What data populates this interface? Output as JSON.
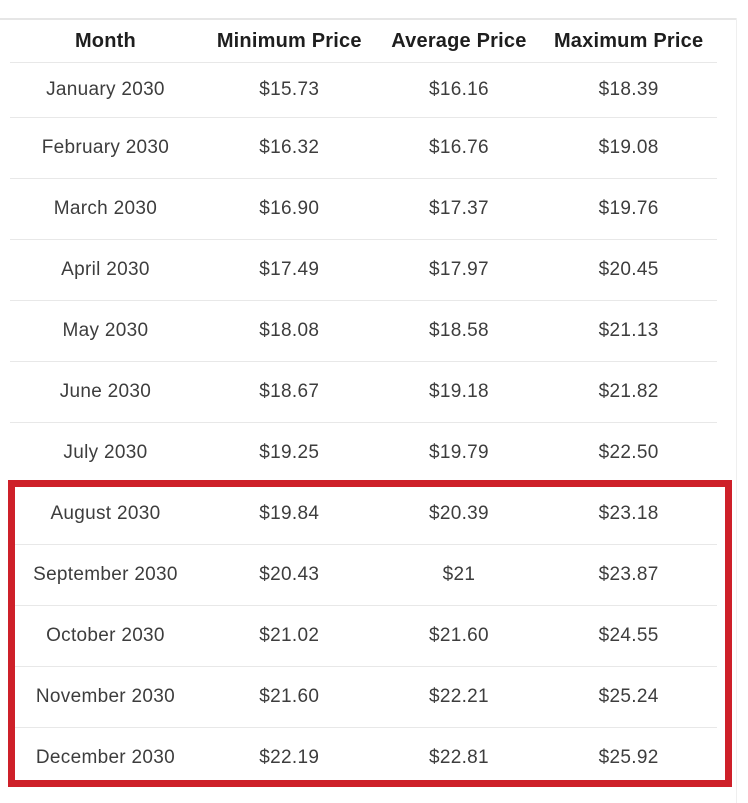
{
  "chart_data": {
    "type": "table",
    "columns": [
      "Month",
      "Minimum Price",
      "Average Price",
      "Maximum Price"
    ],
    "rows": [
      [
        "January 2030",
        "$15.73",
        "$16.16",
        "$18.39"
      ],
      [
        "February 2030",
        "$16.32",
        "$16.76",
        "$19.08"
      ],
      [
        "March 2030",
        "$16.90",
        "$17.37",
        "$19.76"
      ],
      [
        "April 2030",
        "$17.49",
        "$17.97",
        "$20.45"
      ],
      [
        "May 2030",
        "$18.08",
        "$18.58",
        "$21.13"
      ],
      [
        "June 2030",
        "$18.67",
        "$19.18",
        "$21.82"
      ],
      [
        "July 2030",
        "$19.25",
        "$19.79",
        "$22.50"
      ],
      [
        "August 2030",
        "$19.84",
        "$20.39",
        "$23.18"
      ],
      [
        "September 2030",
        "$20.43",
        "$21",
        "$23.87"
      ],
      [
        "October 2030",
        "$21.02",
        "$21.60",
        "$24.55"
      ],
      [
        "November 2030",
        "$21.60",
        "$22.21",
        "$25.24"
      ],
      [
        "December 2030",
        "$22.19",
        "$22.81",
        "$25.92"
      ]
    ],
    "highlight": {
      "highlighted_rows": [
        "August 2030",
        "September 2030",
        "October 2030",
        "November 2030",
        "December 2030"
      ],
      "style": "thick-red-border"
    },
    "layout": {
      "grid": "horizontal-row-dividers",
      "alignment": "center"
    }
  },
  "colors": {
    "highlight_border": "#ce2029",
    "header_text": "#1e1e1e",
    "body_text": "#3d3d3d",
    "row_divider": "#e8e8e8",
    "background": "#ffffff"
  }
}
